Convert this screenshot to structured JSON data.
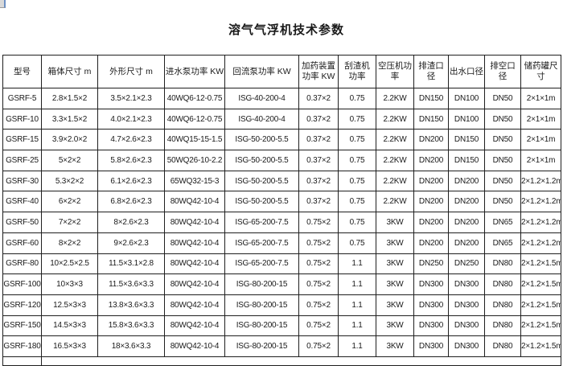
{
  "page": {
    "title": "溶气气浮机技术参数",
    "background_color": "#ffffff",
    "text_color": "#1a1a1a",
    "table_border_color": "#1f1f1f"
  },
  "table": {
    "columns": [
      "型号",
      "箱体尺寸 m",
      "外形尺寸 m",
      "进水泵功率 KW",
      "回流泵功率 KW",
      "加药装置\n功率 KW",
      "刮渣机\n功率",
      "空压机功\n率",
      "排渣口\n径",
      "出水口径",
      "排空口\n径",
      "储药罐尺寸"
    ],
    "rows": [
      [
        "GSRF-5",
        "2.8×1.5×2",
        "3.5×2.1×2.3",
        "40WQ6-12-0.75",
        "ISG-40-200-4",
        "0.37×2",
        "0.75",
        "2.2KW",
        "DN150",
        "DN100",
        "DN50",
        "2×1×1m"
      ],
      [
        "GSRF-10",
        "3.3×1.5×2",
        "4.0×2.1×2.3",
        "40WQ6-12-0.75",
        "ISG-40-200-4",
        "0.37×2",
        "0.75",
        "2.2KW",
        "DN150",
        "DN100",
        "DN50",
        "2×1×1m"
      ],
      [
        "GSRF-15",
        "3.9×2.0×2",
        "4.7×2.6×2.3",
        "40WQ15-15-1.5",
        "ISG-50-200-5.5",
        "0.37×2",
        "0.75",
        "2.2KW",
        "DN200",
        "DN150",
        "DN50",
        "2×1×1m"
      ],
      [
        "GSRF-25",
        "5×2×2",
        "5.8×2.6×2.3",
        "50WQ26-10-2.2",
        "ISG-50-200-5.5",
        "0.37×2",
        "0.75",
        "2.2KW",
        "DN200",
        "DN150",
        "DN50",
        "2×1×1m"
      ],
      [
        "GSRF-30",
        "5.3×2×2",
        "6.1×2.6×2.3",
        "65WQ32-15-3",
        "ISG-50-200-5.5",
        "0.37×2",
        "0.75",
        "2.2KW",
        "DN200",
        "DN200",
        "DN50",
        "2×1.2×1.2m"
      ],
      [
        "GSRF-40",
        "6×2×2",
        "6.8×2.6×2.3",
        "80WQ42-10-4",
        "ISG-50-200-5.5",
        "0.37×2",
        "0.75",
        "2.2KW",
        "DN200",
        "DN200",
        "DN50",
        "2×1.2×1.2m"
      ],
      [
        "GSRF-50",
        "7×2×2",
        "8×2.6×2.3",
        "80WQ42-10-4",
        "ISG-65-200-7.5",
        "0.75×2",
        "0.75",
        "3KW",
        "DN200",
        "DN200",
        "DN65",
        "2×1.2×1.2m"
      ],
      [
        "GSRF-60",
        "8×2×2",
        "9×2.6×2.3",
        "80WQ42-10-4",
        "ISG-65-200-7.5",
        "0.75×2",
        "0.75",
        "3KW",
        "DN200",
        "DN200",
        "DN65",
        "2×1.2×1.2m"
      ],
      [
        "GSRF-80",
        "10×2.5×2.5",
        "11.5×3.1×2.8",
        "80WQ42-10-4",
        "ISG-65-200-7.5",
        "0.75×2",
        "1.1",
        "3KW",
        "DN250",
        "DN250",
        "DN80",
        "2×1.2×1.5m"
      ],
      [
        "GSRF-100",
        "10×3×3",
        "11.5×3.6×3.3",
        "80WQ42-10-4",
        "ISG-80-200-15",
        "0.75×2",
        "1.1",
        "3KW",
        "DN300",
        "DN300",
        "DN80",
        "2×1.2×1.5m"
      ],
      [
        "GSRF-120",
        "12.5×3×3",
        "13.8×3.6×3.3",
        "80WQ42-10-4",
        "ISG-80-200-15",
        "0.75×2",
        "1.1",
        "3KW",
        "DN300",
        "DN300",
        "DN80",
        "2×1.2×1.5m"
      ],
      [
        "GSRF-150",
        "14.5×3×3",
        "15.8×3.6×3.3",
        "80WQ42-10-4",
        "ISG-80-200-15",
        "0.75×2",
        "1.1",
        "3KW",
        "DN300",
        "DN300",
        "DN80",
        "2×1.2×1.5m"
      ],
      [
        "GSRF-180",
        "16.5×3×3",
        "18×3.6×3.3",
        "80WQ42-10-4",
        "ISG-80-200-15",
        "0.75×2",
        "1.1",
        "3KW",
        "DN300",
        "DN300",
        "DN80",
        "2×1.2×1.5m"
      ]
    ]
  }
}
